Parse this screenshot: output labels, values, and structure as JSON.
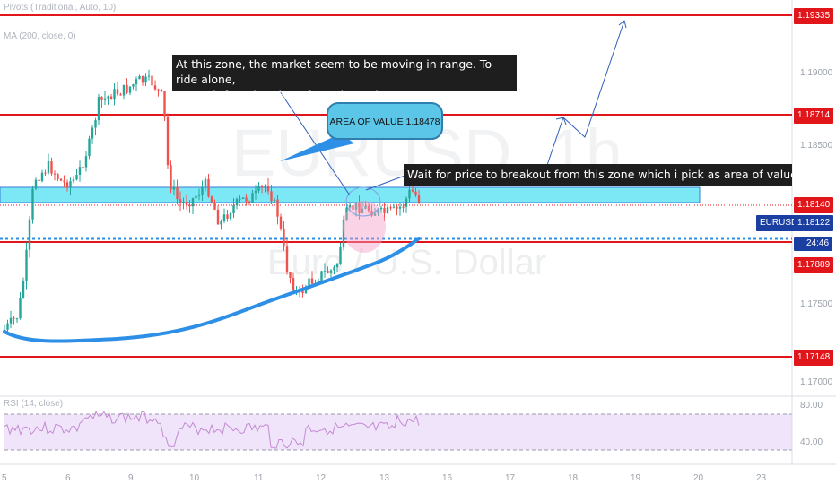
{
  "header": {
    "indicator_1": "Pivots (Traditional, Auto, 10)",
    "indicator_2": "MA (200, close, 0)",
    "rsi_label": "RSI (14, close)"
  },
  "watermark": {
    "symbol": "EURUSD, 1h",
    "description": "Euro / U.S. Dollar"
  },
  "price_scale": {
    "ticks": [
      "1.19000",
      "1.18500",
      "1.17500",
      "1.17000"
    ],
    "top_tag": "1.19335",
    "level_tags": [
      "1.18714",
      "1.18140",
      "1.17889",
      "1.17148"
    ],
    "symbol_tag": "EURUSD",
    "symbol_price": "1.18122",
    "countdown": "24:46",
    "rsi_ticks": [
      "80.00",
      "40.00"
    ]
  },
  "time_axis": {
    "labels": [
      "5",
      "6",
      "9",
      "10",
      "11",
      "12",
      "13",
      "16",
      "17",
      "18",
      "19",
      "20",
      "23"
    ]
  },
  "annotations": {
    "range_note_line1": "At this zone, the market seem to be moving in range. To ride alone,",
    "range_note_line2": "We wait for a breakout from the resistance zone or support zone",
    "area_of_value": "AREA OF VALUE  1.18478",
    "breakout_note": "Wait for price to breakout from this zone which i pick as area of value then go long"
  },
  "colors": {
    "bull": "#26a69a",
    "bear": "#ef5350",
    "level_line": "#e0161b",
    "ma_line": "#2e8fe6",
    "zone_fill": "#7de8f5",
    "rsi_line": "#c38ad1",
    "rsi_fill": "#f0e4fb",
    "callout": "#5bc6e8",
    "symbol_tag": "#1a3fa0"
  }
}
